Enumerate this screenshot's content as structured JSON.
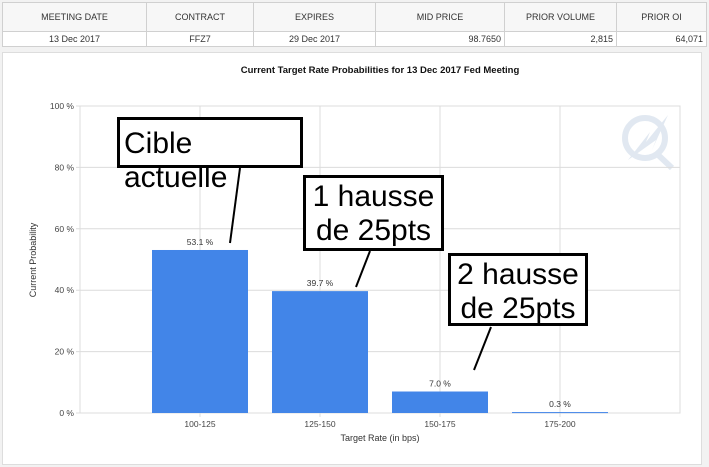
{
  "table": {
    "headers": [
      "MEETING DATE",
      "CONTRACT",
      "EXPIRES",
      "MID PRICE",
      "PRIOR VOLUME",
      "PRIOR OI"
    ],
    "row": [
      "13 Dec 2017",
      "FFZ7",
      "29 Dec 2017",
      "98.7650",
      "2,815",
      "64,071"
    ]
  },
  "chart_data": {
    "type": "bar",
    "title": "Current Target Rate Probabilities for 13 Dec 2017 Fed Meeting",
    "xlabel": "Target Rate (in bps)",
    "ylabel": "Current Probability",
    "categories": [
      "100-125",
      "125-150",
      "150-175",
      "175-200"
    ],
    "values": [
      53.1,
      39.7,
      7.0,
      0.3
    ],
    "value_labels": [
      "53.1 %",
      "39.7 %",
      "7.0 %",
      "0.3 %"
    ],
    "ylim": [
      0,
      100
    ],
    "yticks": [
      "0 %",
      "20 %",
      "40 %",
      "60 %",
      "80 %",
      "100 %"
    ],
    "grid": true,
    "bar_color": "#4285e8"
  },
  "annotations": [
    "Cible actuelle",
    "1 hausse de 25pts",
    "2 hausse de 25pts"
  ]
}
